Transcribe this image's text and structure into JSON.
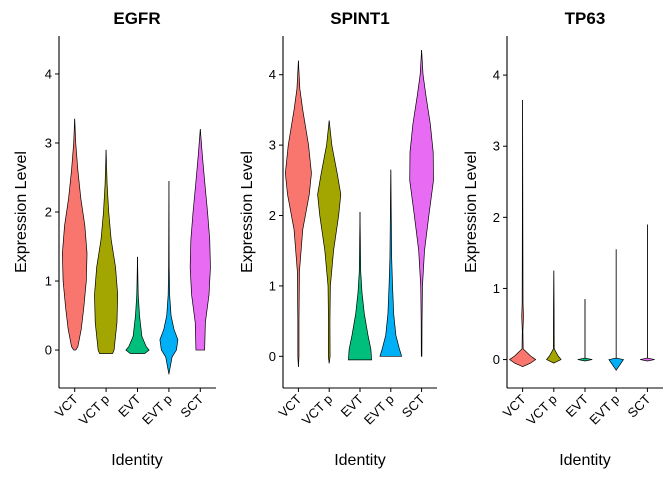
{
  "chart_data": [
    {
      "type": "violin",
      "title": "EGFR",
      "xlabel": "Identity",
      "ylabel": "Expression Level",
      "ylim": [
        -0.55,
        4.55
      ],
      "yticks": [
        "0",
        "1",
        "2",
        "3",
        "4"
      ],
      "categories": [
        "VCT",
        "VCT p",
        "EVT",
        "EVT p",
        "SCT"
      ],
      "colors": [
        "#F8766D",
        "#A3A500",
        "#00BF7D",
        "#00B0F6",
        "#E76BF3"
      ],
      "violins": [
        {
          "name": "VCT",
          "min": 0.0,
          "max": 3.35,
          "profile": [
            [
              0.0,
              0.07
            ],
            [
              0.05,
              0.22
            ],
            [
              0.3,
              0.45
            ],
            [
              0.6,
              0.62
            ],
            [
              1.0,
              0.8
            ],
            [
              1.4,
              0.85
            ],
            [
              1.8,
              0.7
            ],
            [
              2.2,
              0.42
            ],
            [
              2.6,
              0.22
            ],
            [
              3.0,
              0.07
            ],
            [
              3.35,
              0.0
            ]
          ]
        },
        {
          "name": "VCT p",
          "min": -0.05,
          "max": 2.9,
          "profile": [
            [
              -0.05,
              0.45
            ],
            [
              0.0,
              0.55
            ],
            [
              0.4,
              0.75
            ],
            [
              0.8,
              0.8
            ],
            [
              1.2,
              0.65
            ],
            [
              1.6,
              0.35
            ],
            [
              2.0,
              0.18
            ],
            [
              2.4,
              0.07
            ],
            [
              2.9,
              0.0
            ]
          ]
        },
        {
          "name": "EVT",
          "min": -0.05,
          "max": 1.35,
          "profile": [
            [
              -0.05,
              0.5
            ],
            [
              0.0,
              0.8
            ],
            [
              0.05,
              0.6
            ],
            [
              0.2,
              0.3
            ],
            [
              0.5,
              0.14
            ],
            [
              0.8,
              0.05
            ],
            [
              1.0,
              0.03
            ],
            [
              1.35,
              0.0
            ]
          ]
        },
        {
          "name": "EVT p",
          "min": -0.35,
          "max": 2.45,
          "profile": [
            [
              -0.35,
              0.0
            ],
            [
              -0.1,
              0.22
            ],
            [
              0.0,
              0.52
            ],
            [
              0.15,
              0.62
            ],
            [
              0.3,
              0.35
            ],
            [
              0.5,
              0.15
            ],
            [
              0.8,
              0.05
            ],
            [
              1.2,
              0.02
            ],
            [
              2.45,
              0.0
            ]
          ]
        },
        {
          "name": "SCT",
          "min": 0.0,
          "max": 3.2,
          "profile": [
            [
              0.0,
              0.3
            ],
            [
              0.4,
              0.35
            ],
            [
              0.8,
              0.6
            ],
            [
              1.2,
              0.7
            ],
            [
              1.6,
              0.65
            ],
            [
              2.0,
              0.5
            ],
            [
              2.4,
              0.32
            ],
            [
              2.8,
              0.15
            ],
            [
              3.2,
              0.0
            ]
          ]
        }
      ]
    },
    {
      "type": "violin",
      "title": "SPINT1",
      "xlabel": "Identity",
      "ylabel": "Expression Level",
      "ylim": [
        -0.45,
        4.55
      ],
      "yticks": [
        "0",
        "1",
        "2",
        "3",
        "4"
      ],
      "categories": [
        "VCT",
        "VCT p",
        "EVT",
        "EVT p",
        "SCT"
      ],
      "colors": [
        "#F8766D",
        "#A3A500",
        "#00BF7D",
        "#00B0F6",
        "#E76BF3"
      ],
      "violins": [
        {
          "name": "VCT",
          "min": -0.15,
          "max": 4.2,
          "profile": [
            [
              -0.15,
              0.0
            ],
            [
              0.0,
              0.04
            ],
            [
              0.5,
              0.04
            ],
            [
              1.2,
              0.07
            ],
            [
              1.8,
              0.3
            ],
            [
              2.3,
              0.75
            ],
            [
              2.6,
              0.9
            ],
            [
              3.0,
              0.7
            ],
            [
              3.5,
              0.3
            ],
            [
              3.8,
              0.1
            ],
            [
              4.2,
              0.0
            ]
          ]
        },
        {
          "name": "VCT p",
          "min": -0.1,
          "max": 3.35,
          "profile": [
            [
              -0.1,
              0.0
            ],
            [
              0.0,
              0.06
            ],
            [
              0.5,
              0.05
            ],
            [
              1.0,
              0.08
            ],
            [
              1.5,
              0.3
            ],
            [
              2.0,
              0.65
            ],
            [
              2.3,
              0.8
            ],
            [
              2.6,
              0.55
            ],
            [
              3.0,
              0.18
            ],
            [
              3.35,
              0.0
            ]
          ]
        },
        {
          "name": "EVT",
          "min": -0.05,
          "max": 2.05,
          "profile": [
            [
              -0.05,
              0.8
            ],
            [
              0.1,
              0.75
            ],
            [
              0.3,
              0.55
            ],
            [
              0.6,
              0.3
            ],
            [
              0.9,
              0.14
            ],
            [
              1.2,
              0.05
            ],
            [
              2.05,
              0.0
            ]
          ]
        },
        {
          "name": "EVT p",
          "min": 0.0,
          "max": 2.65,
          "profile": [
            [
              0.0,
              0.75
            ],
            [
              0.1,
              0.6
            ],
            [
              0.3,
              0.35
            ],
            [
              0.6,
              0.2
            ],
            [
              1.0,
              0.12
            ],
            [
              1.4,
              0.06
            ],
            [
              2.65,
              0.0
            ]
          ]
        },
        {
          "name": "SCT",
          "min": 0.0,
          "max": 4.35,
          "profile": [
            [
              0.0,
              0.02
            ],
            [
              0.5,
              0.03
            ],
            [
              1.0,
              0.06
            ],
            [
              1.5,
              0.2
            ],
            [
              2.0,
              0.5
            ],
            [
              2.5,
              0.82
            ],
            [
              2.9,
              0.8
            ],
            [
              3.3,
              0.6
            ],
            [
              3.7,
              0.3
            ],
            [
              4.0,
              0.1
            ],
            [
              4.35,
              0.0
            ]
          ]
        }
      ]
    },
    {
      "type": "violin",
      "title": "TP63",
      "xlabel": "Identity",
      "ylabel": "Expression Level",
      "ylim": [
        -0.4,
        4.55
      ],
      "yticks": [
        "0",
        "1",
        "2",
        "3",
        "4"
      ],
      "categories": [
        "VCT",
        "VCT p",
        "EVT",
        "EVT p",
        "SCT"
      ],
      "colors": [
        "#F8766D",
        "#A3A500",
        "#00BF7D",
        "#00B0F6",
        "#E76BF3"
      ],
      "violins": [
        {
          "name": "VCT",
          "min": -0.1,
          "max": 3.65,
          "profile": [
            [
              -0.1,
              0.0
            ],
            [
              -0.05,
              0.55
            ],
            [
              0.0,
              0.9
            ],
            [
              0.05,
              0.55
            ],
            [
              0.15,
              0.04
            ],
            [
              0.4,
              0.02
            ],
            [
              0.6,
              0.06
            ],
            [
              0.8,
              0.03
            ],
            [
              3.65,
              0.0
            ]
          ]
        },
        {
          "name": "VCT p",
          "min": -0.05,
          "max": 1.25,
          "profile": [
            [
              -0.05,
              0.0
            ],
            [
              0.0,
              0.5
            ],
            [
              0.05,
              0.3
            ],
            [
              0.15,
              0.03
            ],
            [
              0.7,
              0.02
            ],
            [
              1.25,
              0.0
            ]
          ]
        },
        {
          "name": "EVT",
          "min": -0.02,
          "max": 0.85,
          "profile": [
            [
              -0.02,
              0.0
            ],
            [
              0.0,
              0.5
            ],
            [
              0.02,
              0.0
            ],
            [
              0.85,
              0.0
            ]
          ]
        },
        {
          "name": "EVT p",
          "min": -0.15,
          "max": 1.55,
          "profile": [
            [
              -0.15,
              0.0
            ],
            [
              0.0,
              0.5
            ],
            [
              0.02,
              0.0
            ],
            [
              1.55,
              0.0
            ]
          ]
        },
        {
          "name": "SCT",
          "min": -0.02,
          "max": 1.9,
          "profile": [
            [
              -0.02,
              0.0
            ],
            [
              0.0,
              0.5
            ],
            [
              0.02,
              0.0
            ],
            [
              1.9,
              0.0
            ]
          ]
        }
      ]
    }
  ]
}
